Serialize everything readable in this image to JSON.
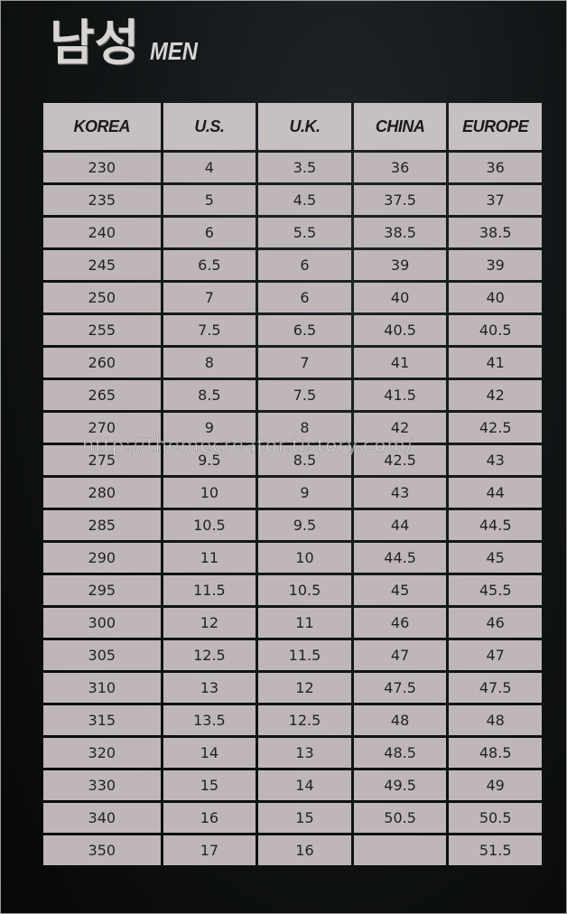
{
  "title": {
    "korean": "남성",
    "english": "MEN"
  },
  "table": {
    "headers": [
      "KOREA",
      "U.S.",
      "U.K.",
      "CHINA",
      "EUROPE"
    ],
    "rows": [
      [
        "230",
        "4",
        "3.5",
        "36",
        "36"
      ],
      [
        "235",
        "5",
        "4.5",
        "37.5",
        "37"
      ],
      [
        "240",
        "6",
        "5.5",
        "38.5",
        "38.5"
      ],
      [
        "245",
        "6.5",
        "6",
        "39",
        "39"
      ],
      [
        "250",
        "7",
        "6",
        "40",
        "40"
      ],
      [
        "255",
        "7.5",
        "6.5",
        "40.5",
        "40.5"
      ],
      [
        "260",
        "8",
        "7",
        "41",
        "41"
      ],
      [
        "265",
        "8.5",
        "7.5",
        "41.5",
        "42"
      ],
      [
        "270",
        "9",
        "8",
        "42",
        "42.5"
      ],
      [
        "275",
        "9.5",
        "8.5",
        "42.5",
        "43"
      ],
      [
        "280",
        "10",
        "9",
        "43",
        "44"
      ],
      [
        "285",
        "10.5",
        "9.5",
        "44",
        "44.5"
      ],
      [
        "290",
        "11",
        "10",
        "44.5",
        "45"
      ],
      [
        "295",
        "11.5",
        "10.5",
        "45",
        "45.5"
      ],
      [
        "300",
        "12",
        "11",
        "46",
        "46"
      ],
      [
        "305",
        "12.5",
        "11.5",
        "47",
        "47"
      ],
      [
        "310",
        "13",
        "12",
        "47.5",
        "47.5"
      ],
      [
        "315",
        "13.5",
        "12.5",
        "48",
        "48"
      ],
      [
        "320",
        "14",
        "13",
        "48.5",
        "48.5"
      ],
      [
        "330",
        "15",
        "14",
        "49.5",
        "49"
      ],
      [
        "340",
        "16",
        "15",
        "50.5",
        "50.5"
      ],
      [
        "350",
        "17",
        "16",
        "",
        "51.5"
      ]
    ]
  },
  "watermark": "http://themecreator.tistory.com/"
}
